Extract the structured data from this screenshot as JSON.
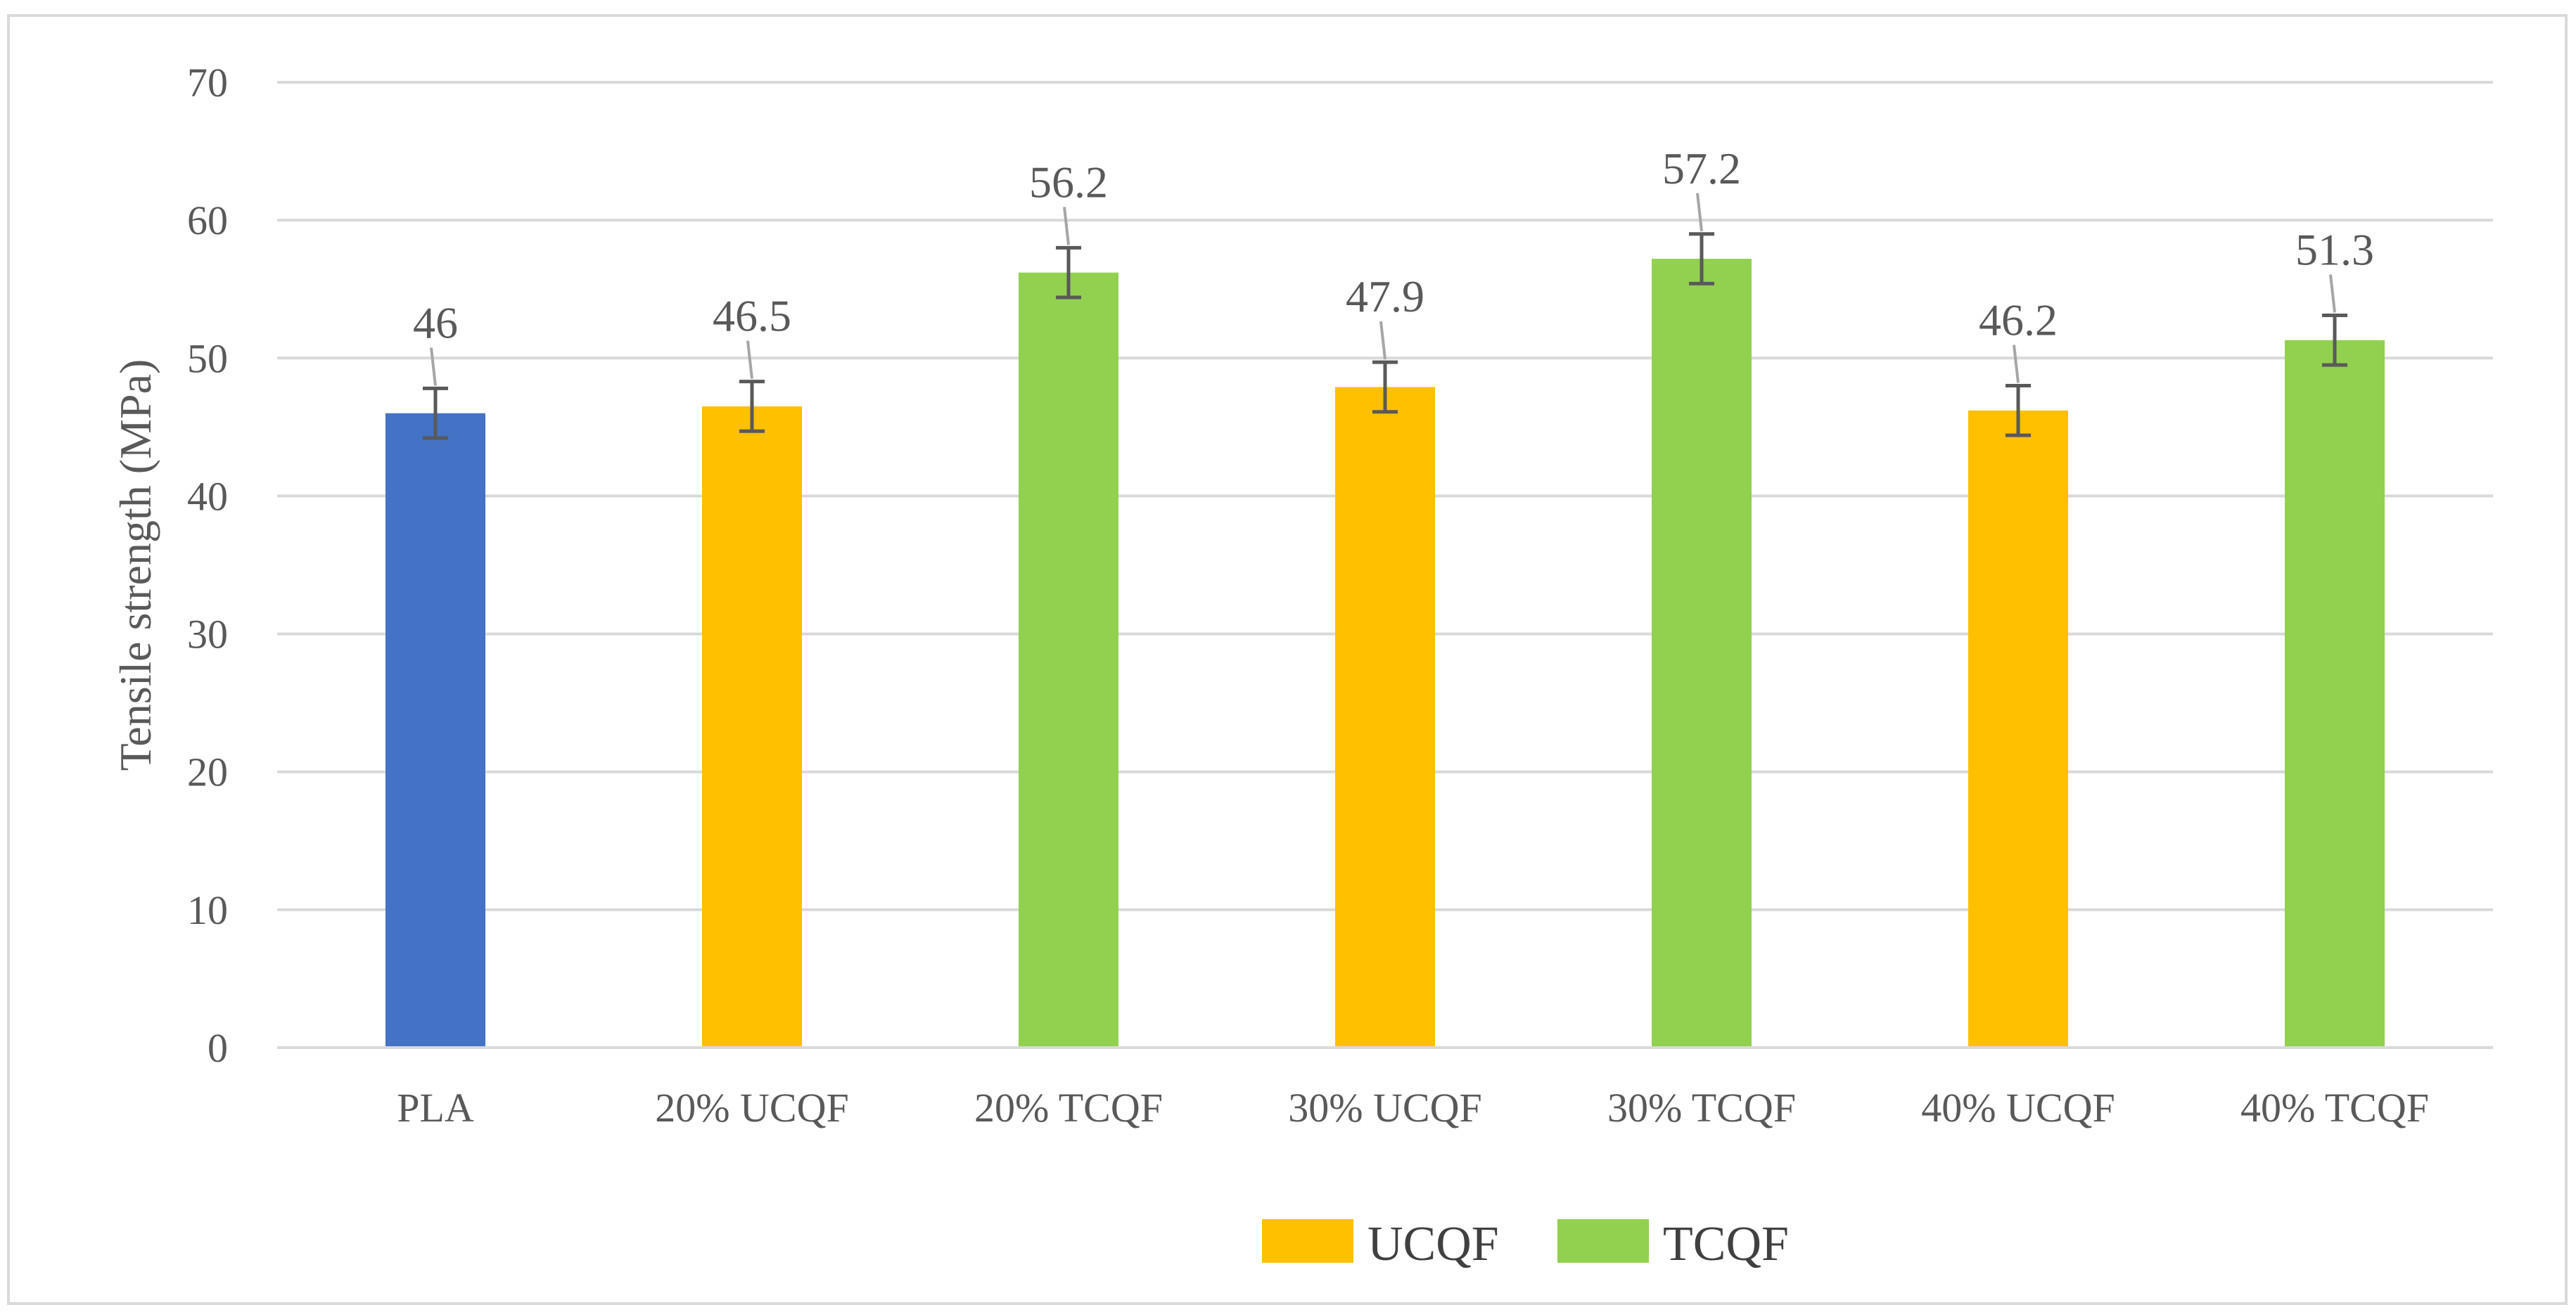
{
  "chart_data": {
    "type": "bar",
    "title": "",
    "xlabel": "",
    "ylabel": "Tensile strength (MPa)",
    "ylim": [
      0,
      70
    ],
    "yticks": [
      0,
      10,
      20,
      30,
      40,
      50,
      60,
      70
    ],
    "grid": true,
    "legend_position": "bottom-center",
    "categories": [
      "PLA",
      "20% UCQF",
      "20% TCQF",
      "30% UCQF",
      "30% TCQF",
      "40% UCQF",
      "40% TCQF"
    ],
    "values": [
      46,
      46.5,
      56.2,
      47.9,
      57.2,
      46.2,
      51.3
    ],
    "data_labels": [
      "46",
      "46.5",
      "56.2",
      "47.9",
      "57.2",
      "46.2",
      "51.3"
    ],
    "errors": [
      1.8,
      1.8,
      1.8,
      1.8,
      1.8,
      1.8,
      1.8
    ],
    "groups": [
      "PLA",
      "UCQF",
      "TCQF",
      "UCQF",
      "TCQF",
      "UCQF",
      "TCQF"
    ],
    "colors": {
      "PLA": "#4472C4",
      "UCQF": "#FFC000",
      "TCQF": "#92D050"
    },
    "legend": [
      {
        "label": "UCQF",
        "color": "#FFC000"
      },
      {
        "label": "TCQF",
        "color": "#92D050"
      }
    ]
  }
}
